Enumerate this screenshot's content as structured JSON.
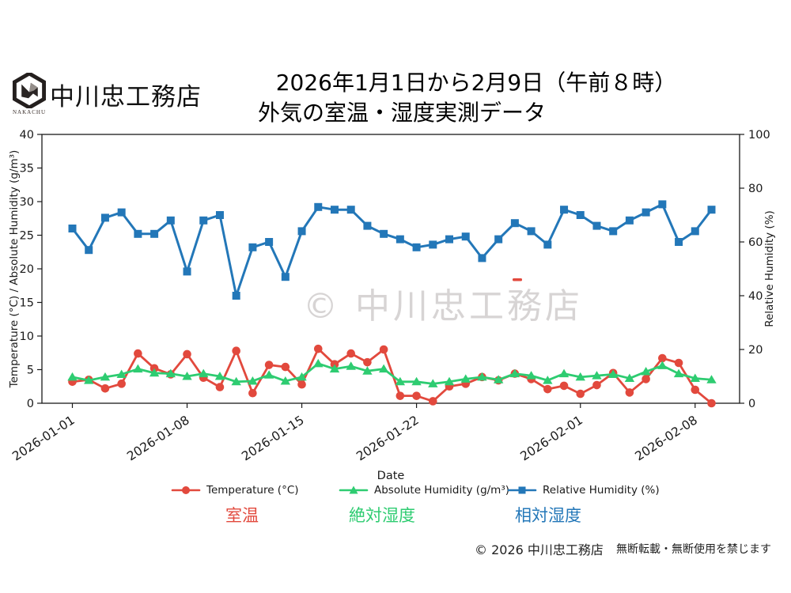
{
  "header": {
    "logo_label": "NAKACHU",
    "company_name": "中川忠工務店",
    "title_line1": "2026年1月1日から2月9日（午前８時）",
    "title_line2": "外気の室温・湿度実測データ"
  },
  "watermark": "© 中川忠工務店",
  "footer": {
    "copyright": "© 2026 中川忠工務店",
    "notice": "無断転載・無断使用を禁じます"
  },
  "chart_data": {
    "type": "line",
    "title": "2026年1月1日から2月9日（午前８時） 外気の室温・湿度実測データ",
    "xlabel": "Date",
    "ylabel_left": "Temperature (°C) / Absolute Humidity (g/m³)",
    "ylabel_right": "Relative Humidity (%)",
    "ylim_left": [
      0,
      40
    ],
    "yticks_left": [
      0,
      5,
      10,
      15,
      20,
      25,
      30,
      35,
      40
    ],
    "ylim_right": [
      0,
      100
    ],
    "yticks_right": [
      0,
      20,
      40,
      60,
      80,
      100
    ],
    "grid": false,
    "legend_position": "bottom",
    "x": [
      "2026-01-01",
      "2026-01-02",
      "2026-01-03",
      "2026-01-04",
      "2026-01-05",
      "2026-01-06",
      "2026-01-07",
      "2026-01-08",
      "2026-01-09",
      "2026-01-10",
      "2026-01-11",
      "2026-01-12",
      "2026-01-13",
      "2026-01-14",
      "2026-01-15",
      "2026-01-16",
      "2026-01-17",
      "2026-01-18",
      "2026-01-19",
      "2026-01-20",
      "2026-01-21",
      "2026-01-22",
      "2026-01-23",
      "2026-01-24",
      "2026-01-25",
      "2026-01-26",
      "2026-01-27",
      "2026-01-28",
      "2026-01-29",
      "2026-01-30",
      "2026-01-31",
      "2026-02-01",
      "2026-02-02",
      "2026-02-03",
      "2026-02-04",
      "2026-02-05",
      "2026-02-06",
      "2026-02-07",
      "2026-02-08",
      "2026-02-09"
    ],
    "xticks": {
      "indices": [
        0,
        7,
        14,
        21,
        31,
        38
      ],
      "labels": [
        "2026-01-01",
        "2026-01-08",
        "2026-01-15",
        "2026-01-22",
        "2026-02-01",
        "2026-02-08"
      ]
    },
    "series": [
      {
        "name": "Temperature (°C)",
        "name_ja": "室温",
        "color": "#e2493d",
        "marker": "circle",
        "axis": "left",
        "values": [
          3.2,
          3.5,
          2.2,
          2.9,
          7.4,
          5.2,
          4.3,
          7.3,
          3.8,
          2.4,
          7.8,
          1.5,
          5.7,
          5.4,
          2.8,
          8.1,
          5.8,
          7.4,
          6.1,
          8.0,
          1.1,
          1.1,
          0.3,
          2.5,
          2.9,
          3.9,
          3.4,
          4.4,
          3.6,
          2.1,
          2.6,
          1.4,
          2.7,
          4.5,
          1.6,
          3.6,
          6.7,
          6.0,
          2.0,
          0.0
        ]
      },
      {
        "name": "Absolute Humidity (g/m³)",
        "name_ja": "絶対湿度",
        "color": "#2ecc71",
        "marker": "triangle",
        "axis": "left",
        "values": [
          3.9,
          3.4,
          3.9,
          4.3,
          5.1,
          4.5,
          4.4,
          4.0,
          4.4,
          4.0,
          3.2,
          3.3,
          4.2,
          3.3,
          3.9,
          5.9,
          5.1,
          5.5,
          4.8,
          5.1,
          3.2,
          3.2,
          2.9,
          3.2,
          3.6,
          3.9,
          3.5,
          4.4,
          4.1,
          3.4,
          4.4,
          3.9,
          4.1,
          4.3,
          3.7,
          4.7,
          5.6,
          4.4,
          3.7,
          3.5
        ]
      },
      {
        "name": "Relative Humidity (%)",
        "name_ja": "相対湿度",
        "color": "#2377b8",
        "marker": "square",
        "axis": "right",
        "values": [
          65,
          57,
          69,
          71,
          63,
          63,
          68,
          49,
          68,
          70,
          40,
          58,
          60,
          47,
          64,
          73,
          72,
          72,
          66,
          63,
          61,
          58,
          59,
          61,
          62,
          54,
          61,
          67,
          64,
          59,
          72,
          70,
          66,
          64,
          68,
          71,
          74,
          60,
          64,
          72
        ]
      }
    ]
  }
}
